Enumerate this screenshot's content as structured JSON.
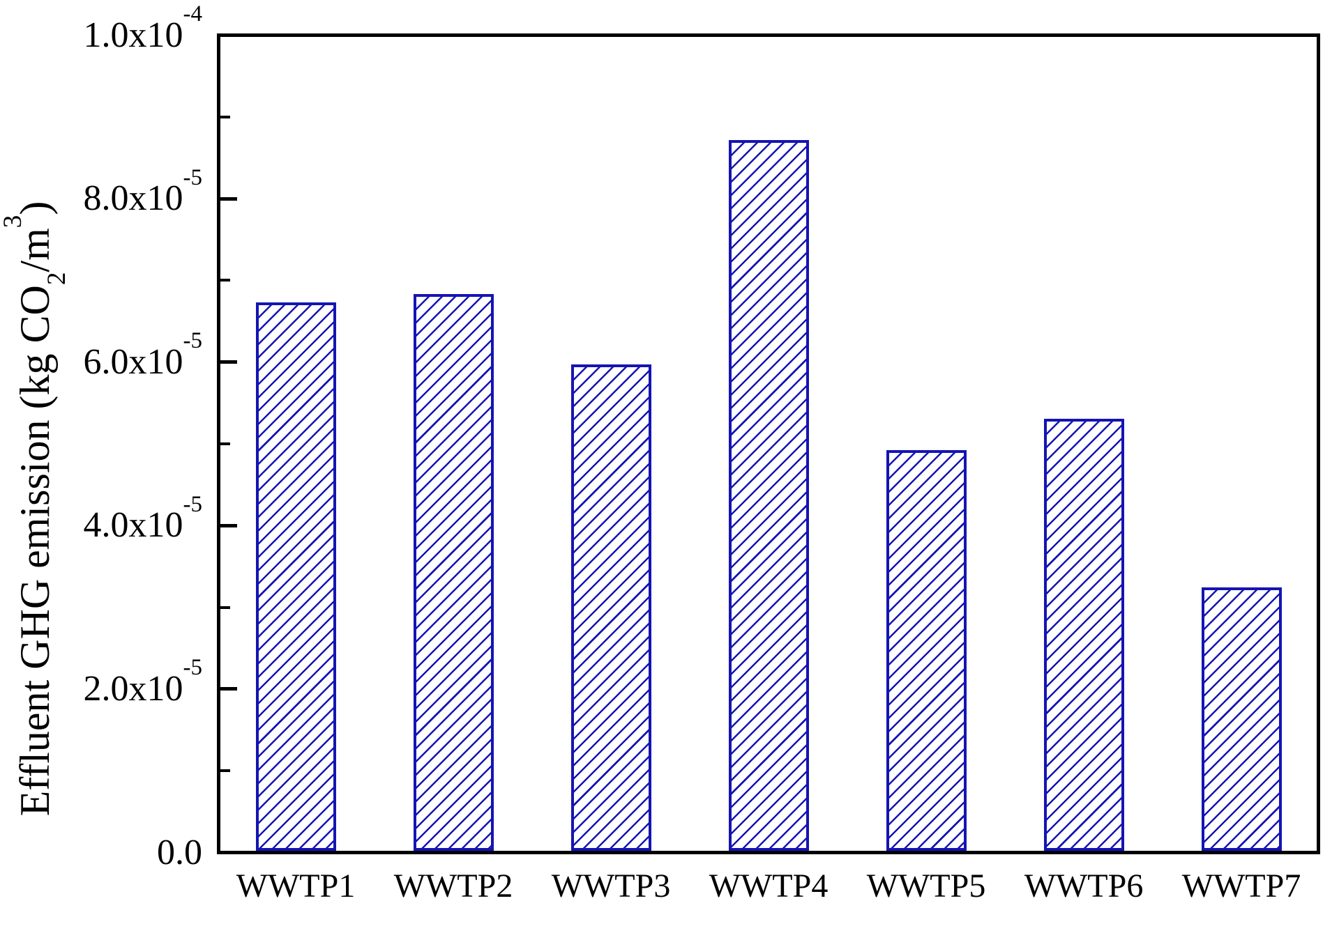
{
  "figure": {
    "background": "#ffffff",
    "axis_color": "#000000"
  },
  "chart_data": {
    "type": "bar",
    "title": "",
    "xlabel": "",
    "ylabel": "Effluent GHG emission (kg CO₂/m³)",
    "ylabel_parts": {
      "p1": "Effluent GHG emission (kg CO",
      "sub": "2",
      "p2": "/m",
      "sup": "3",
      "p3": ")"
    },
    "categories": [
      "WWTP1",
      "WWTP2",
      "WWTP3",
      "WWTP4",
      "WWTP5",
      "WWTP6",
      "WWTP7"
    ],
    "values": [
      6.73e-05,
      6.83e-05,
      5.97e-05,
      8.72e-05,
      4.92e-05,
      5.31e-05,
      3.24e-05
    ],
    "ylim": [
      0,
      0.0001
    ],
    "yticks": [
      {
        "value": 0,
        "mantissa": "0.0",
        "exponent": ""
      },
      {
        "value": 2e-05,
        "mantissa": "2.0x10",
        "exponent": "-5"
      },
      {
        "value": 4e-05,
        "mantissa": "4.0x10",
        "exponent": "-5"
      },
      {
        "value": 6e-05,
        "mantissa": "6.0x10",
        "exponent": "-5"
      },
      {
        "value": 8e-05,
        "mantissa": "8.0x10",
        "exponent": "-5"
      },
      {
        "value": 0.0001,
        "mantissa": "1.0x10",
        "exponent": "-4"
      }
    ],
    "yticks_minor": [
      1e-05,
      3e-05,
      5e-05,
      7e-05,
      9e-05
    ],
    "grid": false,
    "legend": false,
    "bar_style": {
      "fill": "#ffffff",
      "hatch": "diagonal-forward-slash",
      "edge_color": "#1414b4",
      "hatch_color": "#1414b4"
    }
  }
}
